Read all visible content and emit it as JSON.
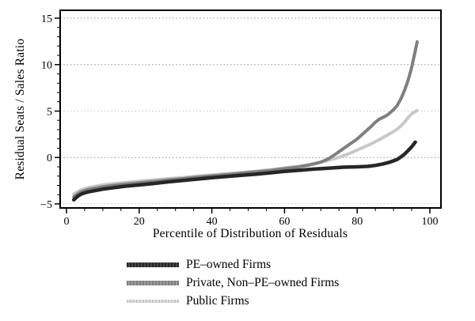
{
  "chart_data": {
    "type": "line",
    "title": "",
    "xlabel": "Percentile of Distribution of Residuals",
    "ylabel": "Residual Seats / Sales Ratio",
    "xlim": [
      -1.74,
      103.05
    ],
    "ylim": [
      -5.43,
      15.85
    ],
    "x_ticks": [
      0,
      20,
      40,
      60,
      80,
      100
    ],
    "x_minor_step": 5,
    "y_ticks": [
      {
        "v": -5,
        "label": "−5"
      },
      {
        "v": 0,
        "label": "0"
      },
      {
        "v": 5,
        "label": "5"
      },
      {
        "v": 10,
        "label": "10"
      },
      {
        "v": 15,
        "label": "15"
      }
    ],
    "y_minor_step": 1,
    "grid": "horizontal dotted lines at y major ticks",
    "legend_position": "below plot, left-aligned",
    "colors": {
      "axis": "#000000",
      "grid": "#8f8f8f",
      "grid_light": "#c6c6c6",
      "background": "#ffffff"
    },
    "series": [
      {
        "name": "PE–owned Firms",
        "color": "#262626",
        "color2": "#474747",
        "width": 4.5,
        "points": [
          [
            2,
            -4.55
          ],
          [
            3,
            -4.2
          ],
          [
            4,
            -3.95
          ],
          [
            5,
            -3.8
          ],
          [
            6,
            -3.7
          ],
          [
            8,
            -3.55
          ],
          [
            10,
            -3.4
          ],
          [
            13,
            -3.25
          ],
          [
            16,
            -3.1
          ],
          [
            20,
            -2.95
          ],
          [
            24,
            -2.8
          ],
          [
            28,
            -2.62
          ],
          [
            32,
            -2.48
          ],
          [
            36,
            -2.32
          ],
          [
            40,
            -2.18
          ],
          [
            44,
            -2.05
          ],
          [
            48,
            -1.92
          ],
          [
            52,
            -1.8
          ],
          [
            56,
            -1.65
          ],
          [
            60,
            -1.5
          ],
          [
            64,
            -1.38
          ],
          [
            68,
            -1.25
          ],
          [
            72,
            -1.15
          ],
          [
            76,
            -1.05
          ],
          [
            80,
            -1.0
          ],
          [
            83,
            -0.95
          ],
          [
            85,
            -0.85
          ],
          [
            87,
            -0.7
          ],
          [
            89,
            -0.5
          ],
          [
            91,
            -0.2
          ],
          [
            92,
            0.05
          ],
          [
            93,
            0.35
          ],
          [
            94,
            0.75
          ],
          [
            95,
            1.15
          ],
          [
            96,
            1.65
          ]
        ]
      },
      {
        "name": "Private, Non–PE–owned Firms",
        "color": "#7f7f7f",
        "color2": "#9b9b9b",
        "width": 4,
        "points": [
          [
            2,
            -4.25
          ],
          [
            3,
            -3.95
          ],
          [
            4,
            -3.7
          ],
          [
            5,
            -3.55
          ],
          [
            6,
            -3.45
          ],
          [
            8,
            -3.3
          ],
          [
            10,
            -3.15
          ],
          [
            13,
            -3.0
          ],
          [
            16,
            -2.88
          ],
          [
            20,
            -2.72
          ],
          [
            24,
            -2.58
          ],
          [
            28,
            -2.42
          ],
          [
            32,
            -2.28
          ],
          [
            36,
            -2.12
          ],
          [
            40,
            -1.98
          ],
          [
            44,
            -1.85
          ],
          [
            48,
            -1.7
          ],
          [
            52,
            -1.55
          ],
          [
            56,
            -1.4
          ],
          [
            60,
            -1.2
          ],
          [
            64,
            -1.0
          ],
          [
            67,
            -0.8
          ],
          [
            70,
            -0.5
          ],
          [
            72,
            -0.15
          ],
          [
            74,
            0.35
          ],
          [
            76,
            0.9
          ],
          [
            78,
            1.45
          ],
          [
            80,
            2.0
          ],
          [
            82,
            2.7
          ],
          [
            84,
            3.4
          ],
          [
            85,
            3.8
          ],
          [
            86,
            4.1
          ],
          [
            87,
            4.3
          ],
          [
            88,
            4.5
          ],
          [
            89,
            4.8
          ],
          [
            90,
            5.15
          ],
          [
            91,
            5.6
          ],
          [
            92,
            6.3
          ],
          [
            93,
            7.2
          ],
          [
            94,
            8.3
          ],
          [
            95,
            9.7
          ],
          [
            95.5,
            10.6
          ],
          [
            96,
            11.5
          ],
          [
            96.5,
            12.45
          ]
        ]
      },
      {
        "name": "Public Firms",
        "color": "#c8c8c8",
        "color2": "#dedede",
        "width": 4,
        "points": [
          [
            2,
            -3.95
          ],
          [
            3,
            -3.7
          ],
          [
            4,
            -3.5
          ],
          [
            5,
            -3.35
          ],
          [
            6,
            -3.25
          ],
          [
            8,
            -3.1
          ],
          [
            10,
            -2.95
          ],
          [
            13,
            -2.82
          ],
          [
            16,
            -2.7
          ],
          [
            20,
            -2.55
          ],
          [
            24,
            -2.42
          ],
          [
            28,
            -2.28
          ],
          [
            32,
            -2.15
          ],
          [
            36,
            -2.0
          ],
          [
            40,
            -1.88
          ],
          [
            44,
            -1.75
          ],
          [
            48,
            -1.62
          ],
          [
            52,
            -1.48
          ],
          [
            56,
            -1.32
          ],
          [
            60,
            -1.12
          ],
          [
            64,
            -0.95
          ],
          [
            67,
            -0.75
          ],
          [
            70,
            -0.5
          ],
          [
            72,
            -0.3
          ],
          [
            74,
            -0.1
          ],
          [
            76,
            0.15
          ],
          [
            78,
            0.45
          ],
          [
            80,
            0.8
          ],
          [
            82,
            1.15
          ],
          [
            84,
            1.5
          ],
          [
            86,
            1.9
          ],
          [
            88,
            2.35
          ],
          [
            90,
            2.8
          ],
          [
            91,
            3.05
          ],
          [
            92,
            3.4
          ],
          [
            93,
            3.8
          ],
          [
            94,
            4.3
          ],
          [
            95,
            4.7
          ],
          [
            96,
            4.95
          ],
          [
            96.5,
            5.05
          ]
        ]
      }
    ]
  }
}
